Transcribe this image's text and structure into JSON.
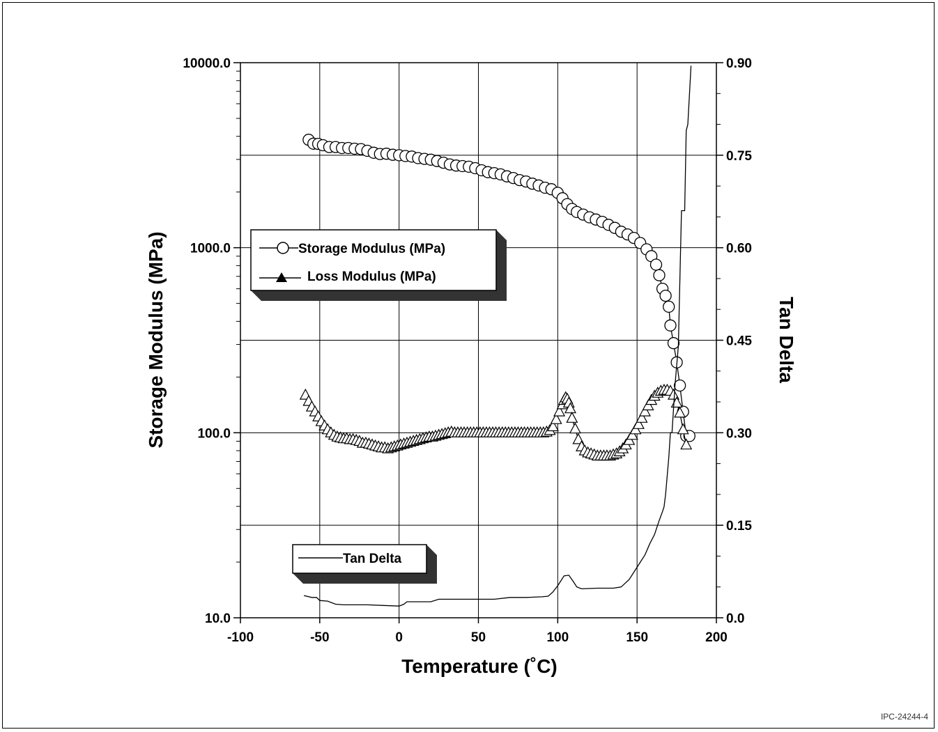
{
  "figure_id": "IPC-24244-4",
  "colors": {
    "line": "#000000",
    "shadow": "#333333",
    "background": "#ffffff"
  },
  "chart_data": {
    "type": "line",
    "xlabel": "Temperature (˚C)",
    "ylabel_left": "Storage Modulus (MPa)",
    "ylabel_right": "Tan Delta",
    "xlim": [
      -100,
      200
    ],
    "ylim_left": [
      10,
      10000
    ],
    "ylim_right": [
      0,
      0.9
    ],
    "left_scale": "log",
    "grid": true,
    "x_ticks": [
      "-100",
      "-50",
      "0",
      "50",
      "100",
      "150",
      "200"
    ],
    "left_ticks": [
      "10000.0",
      "1000.0",
      "100.0",
      "10.0"
    ],
    "right_ticks": [
      "0.90",
      "0.75",
      "0.60",
      "0.45",
      "0.30",
      "0.15",
      "0.0"
    ],
    "legend_modulus": [
      "Storage Modulus (MPa)",
      "Loss Modulus (MPa)"
    ],
    "legend_tan": [
      "Tan Delta"
    ],
    "series": [
      {
        "name": "Storage Modulus (MPa)",
        "axis": "left",
        "marker": "circle",
        "x": [
          -57,
          -54,
          -51,
          -48,
          -44,
          -40,
          -36,
          -32,
          -28,
          -24,
          -20,
          -16,
          -12,
          -8,
          -4,
          0,
          4,
          8,
          12,
          16,
          20,
          24,
          28,
          32,
          36,
          40,
          44,
          48,
          52,
          56,
          60,
          64,
          68,
          72,
          76,
          80,
          84,
          88,
          92,
          96,
          100,
          103,
          106,
          109,
          112,
          116,
          120,
          124,
          128,
          132,
          136,
          140,
          144,
          148,
          152,
          156,
          159,
          162,
          164,
          166,
          168,
          170,
          171,
          173,
          175,
          177,
          179,
          181,
          183
        ],
        "y": [
          3830,
          3650,
          3640,
          3580,
          3500,
          3500,
          3460,
          3460,
          3430,
          3410,
          3340,
          3260,
          3210,
          3220,
          3180,
          3160,
          3130,
          3110,
          3050,
          3020,
          2990,
          2940,
          2880,
          2820,
          2780,
          2760,
          2740,
          2690,
          2620,
          2560,
          2530,
          2490,
          2430,
          2380,
          2320,
          2280,
          2220,
          2170,
          2110,
          2070,
          1980,
          1850,
          1720,
          1620,
          1560,
          1510,
          1460,
          1420,
          1380,
          1330,
          1280,
          1220,
          1180,
          1130,
          1060,
          980,
          900,
          810,
          710,
          600,
          550,
          480,
          380,
          305,
          240,
          180,
          130,
          96,
          96
        ]
      },
      {
        "name": "Loss Modulus (MPa)",
        "axis": "left",
        "marker": "triangle",
        "x": [
          -59,
          -57,
          -55,
          -53,
          -51,
          -49,
          -47,
          -45,
          -43,
          -41,
          -39,
          -37,
          -35,
          -33,
          -31,
          -29,
          -27,
          -25,
          -23,
          -21,
          -19,
          -17,
          -15,
          -13,
          -11,
          -9,
          -7,
          -5,
          -3,
          -1,
          1,
          3,
          5,
          7,
          9,
          11,
          13,
          15,
          17,
          19,
          21,
          23,
          25,
          27,
          29,
          31,
          33,
          35,
          37,
          39,
          41,
          43,
          45,
          47,
          49,
          51,
          53,
          55,
          57,
          59,
          61,
          63,
          65,
          67,
          69,
          71,
          73,
          75,
          77,
          79,
          81,
          83,
          85,
          87,
          89,
          91,
          93,
          95,
          97,
          99,
          101,
          103,
          104,
          105,
          106,
          107,
          108,
          109,
          111,
          113,
          115,
          117,
          119,
          121,
          123,
          125,
          127,
          129,
          131,
          133,
          135,
          137,
          139,
          141,
          143,
          145,
          147,
          149,
          151,
          153,
          155,
          157,
          159,
          161,
          163,
          165,
          167,
          169,
          171,
          173,
          175,
          177,
          179,
          181
        ],
        "y": [
          160,
          148,
          138,
          130,
          122,
          115,
          109,
          104,
          100,
          97,
          95,
          94,
          93,
          93,
          92,
          92,
          91,
          90,
          88,
          88,
          87,
          86,
          85,
          84,
          83,
          83,
          82,
          83,
          84,
          85,
          86,
          87,
          88,
          89,
          90,
          91,
          92,
          93,
          94,
          95,
          95,
          96,
          97,
          98,
          99,
          100,
          101,
          100,
          100,
          100,
          100,
          100,
          100,
          100,
          100,
          100,
          100,
          100,
          100,
          100,
          100,
          100,
          100,
          100,
          100,
          100,
          100,
          100,
          100,
          100,
          100,
          100,
          100,
          100,
          100,
          100,
          101,
          103,
          108,
          118,
          130,
          142,
          150,
          155,
          152,
          145,
          135,
          120,
          105,
          92,
          84,
          80,
          78,
          77,
          76,
          75,
          75,
          75,
          75,
          75,
          76,
          77,
          79,
          82,
          86,
          91,
          97,
          104,
          111,
          120,
          130,
          140,
          150,
          158,
          164,
          168,
          170,
          170,
          168,
          160,
          145,
          128,
          104,
          86
        ]
      },
      {
        "name": "Tan Delta",
        "axis": "right",
        "marker": "none",
        "x": [
          -60,
          -55,
          -52,
          -50,
          -45,
          -40,
          -35,
          -30,
          -20,
          -10,
          0,
          3,
          5,
          10,
          20,
          25,
          30,
          40,
          50,
          60,
          70,
          80,
          90,
          94,
          97,
          100,
          102,
          104,
          107,
          110,
          112,
          115,
          125,
          135,
          140,
          145,
          150,
          155,
          158,
          161,
          164,
          166,
          167,
          168,
          170,
          171,
          172,
          174,
          176,
          178,
          180,
          181,
          182,
          184
        ],
        "y": [
          0.036,
          0.033,
          0.033,
          0.028,
          0.027,
          0.022,
          0.021,
          0.021,
          0.021,
          0.02,
          0.019,
          0.022,
          0.026,
          0.026,
          0.026,
          0.03,
          0.03,
          0.03,
          0.03,
          0.03,
          0.033,
          0.033,
          0.034,
          0.035,
          0.042,
          0.052,
          0.06,
          0.068,
          0.069,
          0.058,
          0.05,
          0.047,
          0.048,
          0.048,
          0.05,
          0.062,
          0.082,
          0.102,
          0.12,
          0.135,
          0.158,
          0.172,
          0.18,
          0.2,
          0.26,
          0.3,
          0.3,
          0.38,
          0.44,
          0.66,
          0.66,
          0.79,
          0.8,
          0.895
        ]
      }
    ]
  }
}
